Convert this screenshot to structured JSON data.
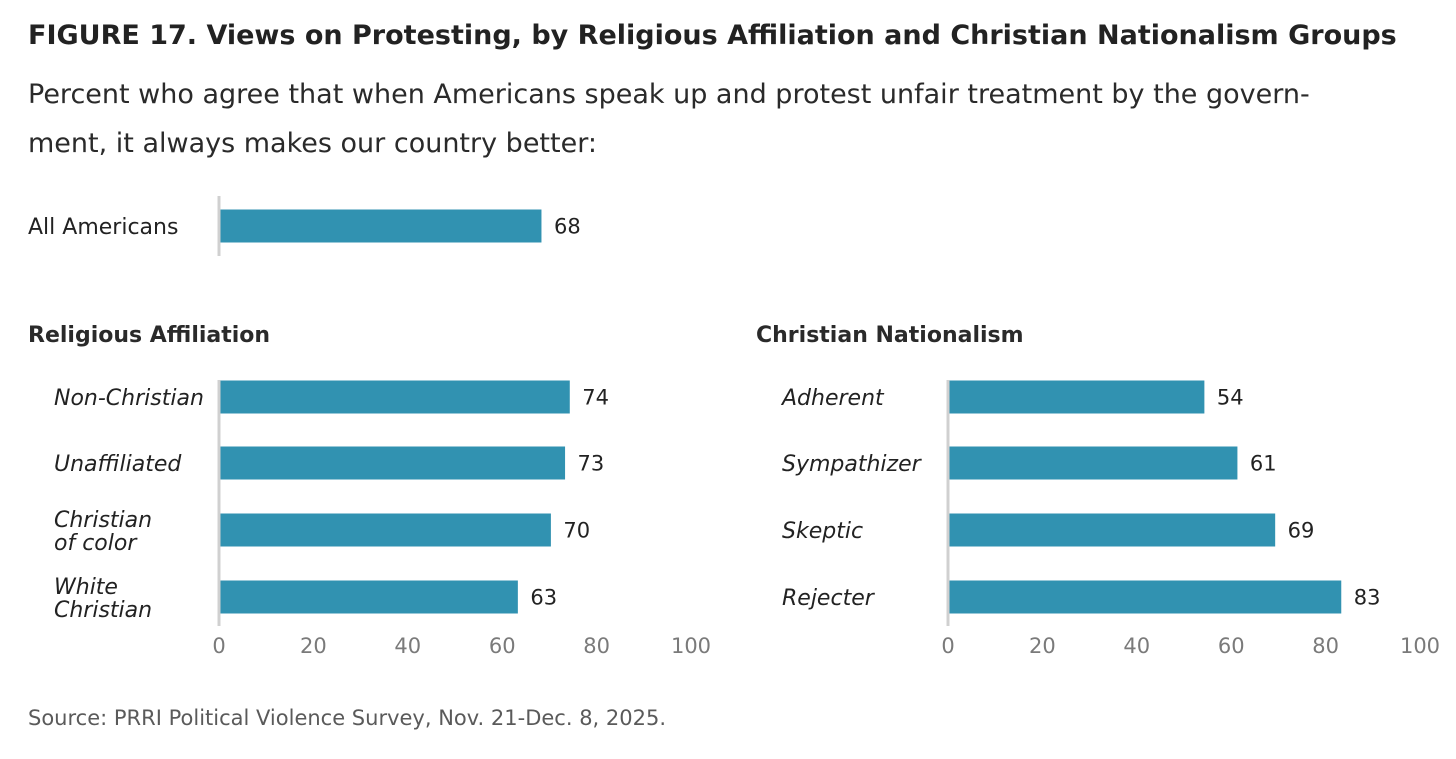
{
  "figure": {
    "title": "FIGURE 17.  Views on Protesting, by Religious Affiliation and Christian Nationalism Groups",
    "subtitle_lines": [
      "Percent who agree that when Americans speak up and protest unfair treatment by the govern-",
      "ment, it always makes our country better:"
    ],
    "source": "Source: PRRI Political Violence Survey, Nov. 21-Dec. 8, 2025."
  },
  "colors": {
    "bar": "#3192b1",
    "axis": "#d0d0d0",
    "tick": "#7a7a7a",
    "text": "#222222"
  },
  "chart_data": [
    {
      "type": "bar",
      "orientation": "horizontal",
      "title": "",
      "categories": [
        [
          "All Americans"
        ]
      ],
      "values": [
        68
      ],
      "xlim": [
        0,
        100
      ],
      "ticks": []
    },
    {
      "type": "bar",
      "orientation": "horizontal",
      "title": "Religious Affiliation",
      "categories": [
        [
          "Non-Christian"
        ],
        [
          "Unaffiliated"
        ],
        [
          "Christian",
          "of color"
        ],
        [
          "White",
          "Christian"
        ]
      ],
      "values": [
        74,
        73,
        70,
        63
      ],
      "xlim": [
        0,
        100
      ],
      "ticks": [
        0,
        20,
        40,
        60,
        80,
        100
      ]
    },
    {
      "type": "bar",
      "orientation": "horizontal",
      "title": "Christian Nationalism",
      "categories": [
        [
          "Adherent"
        ],
        [
          "Sympathizer"
        ],
        [
          "Skeptic"
        ],
        [
          "Rejecter"
        ]
      ],
      "values": [
        54,
        61,
        69,
        83
      ],
      "xlim": [
        0,
        100
      ],
      "ticks": [
        0,
        20,
        40,
        60,
        80,
        100
      ]
    }
  ]
}
